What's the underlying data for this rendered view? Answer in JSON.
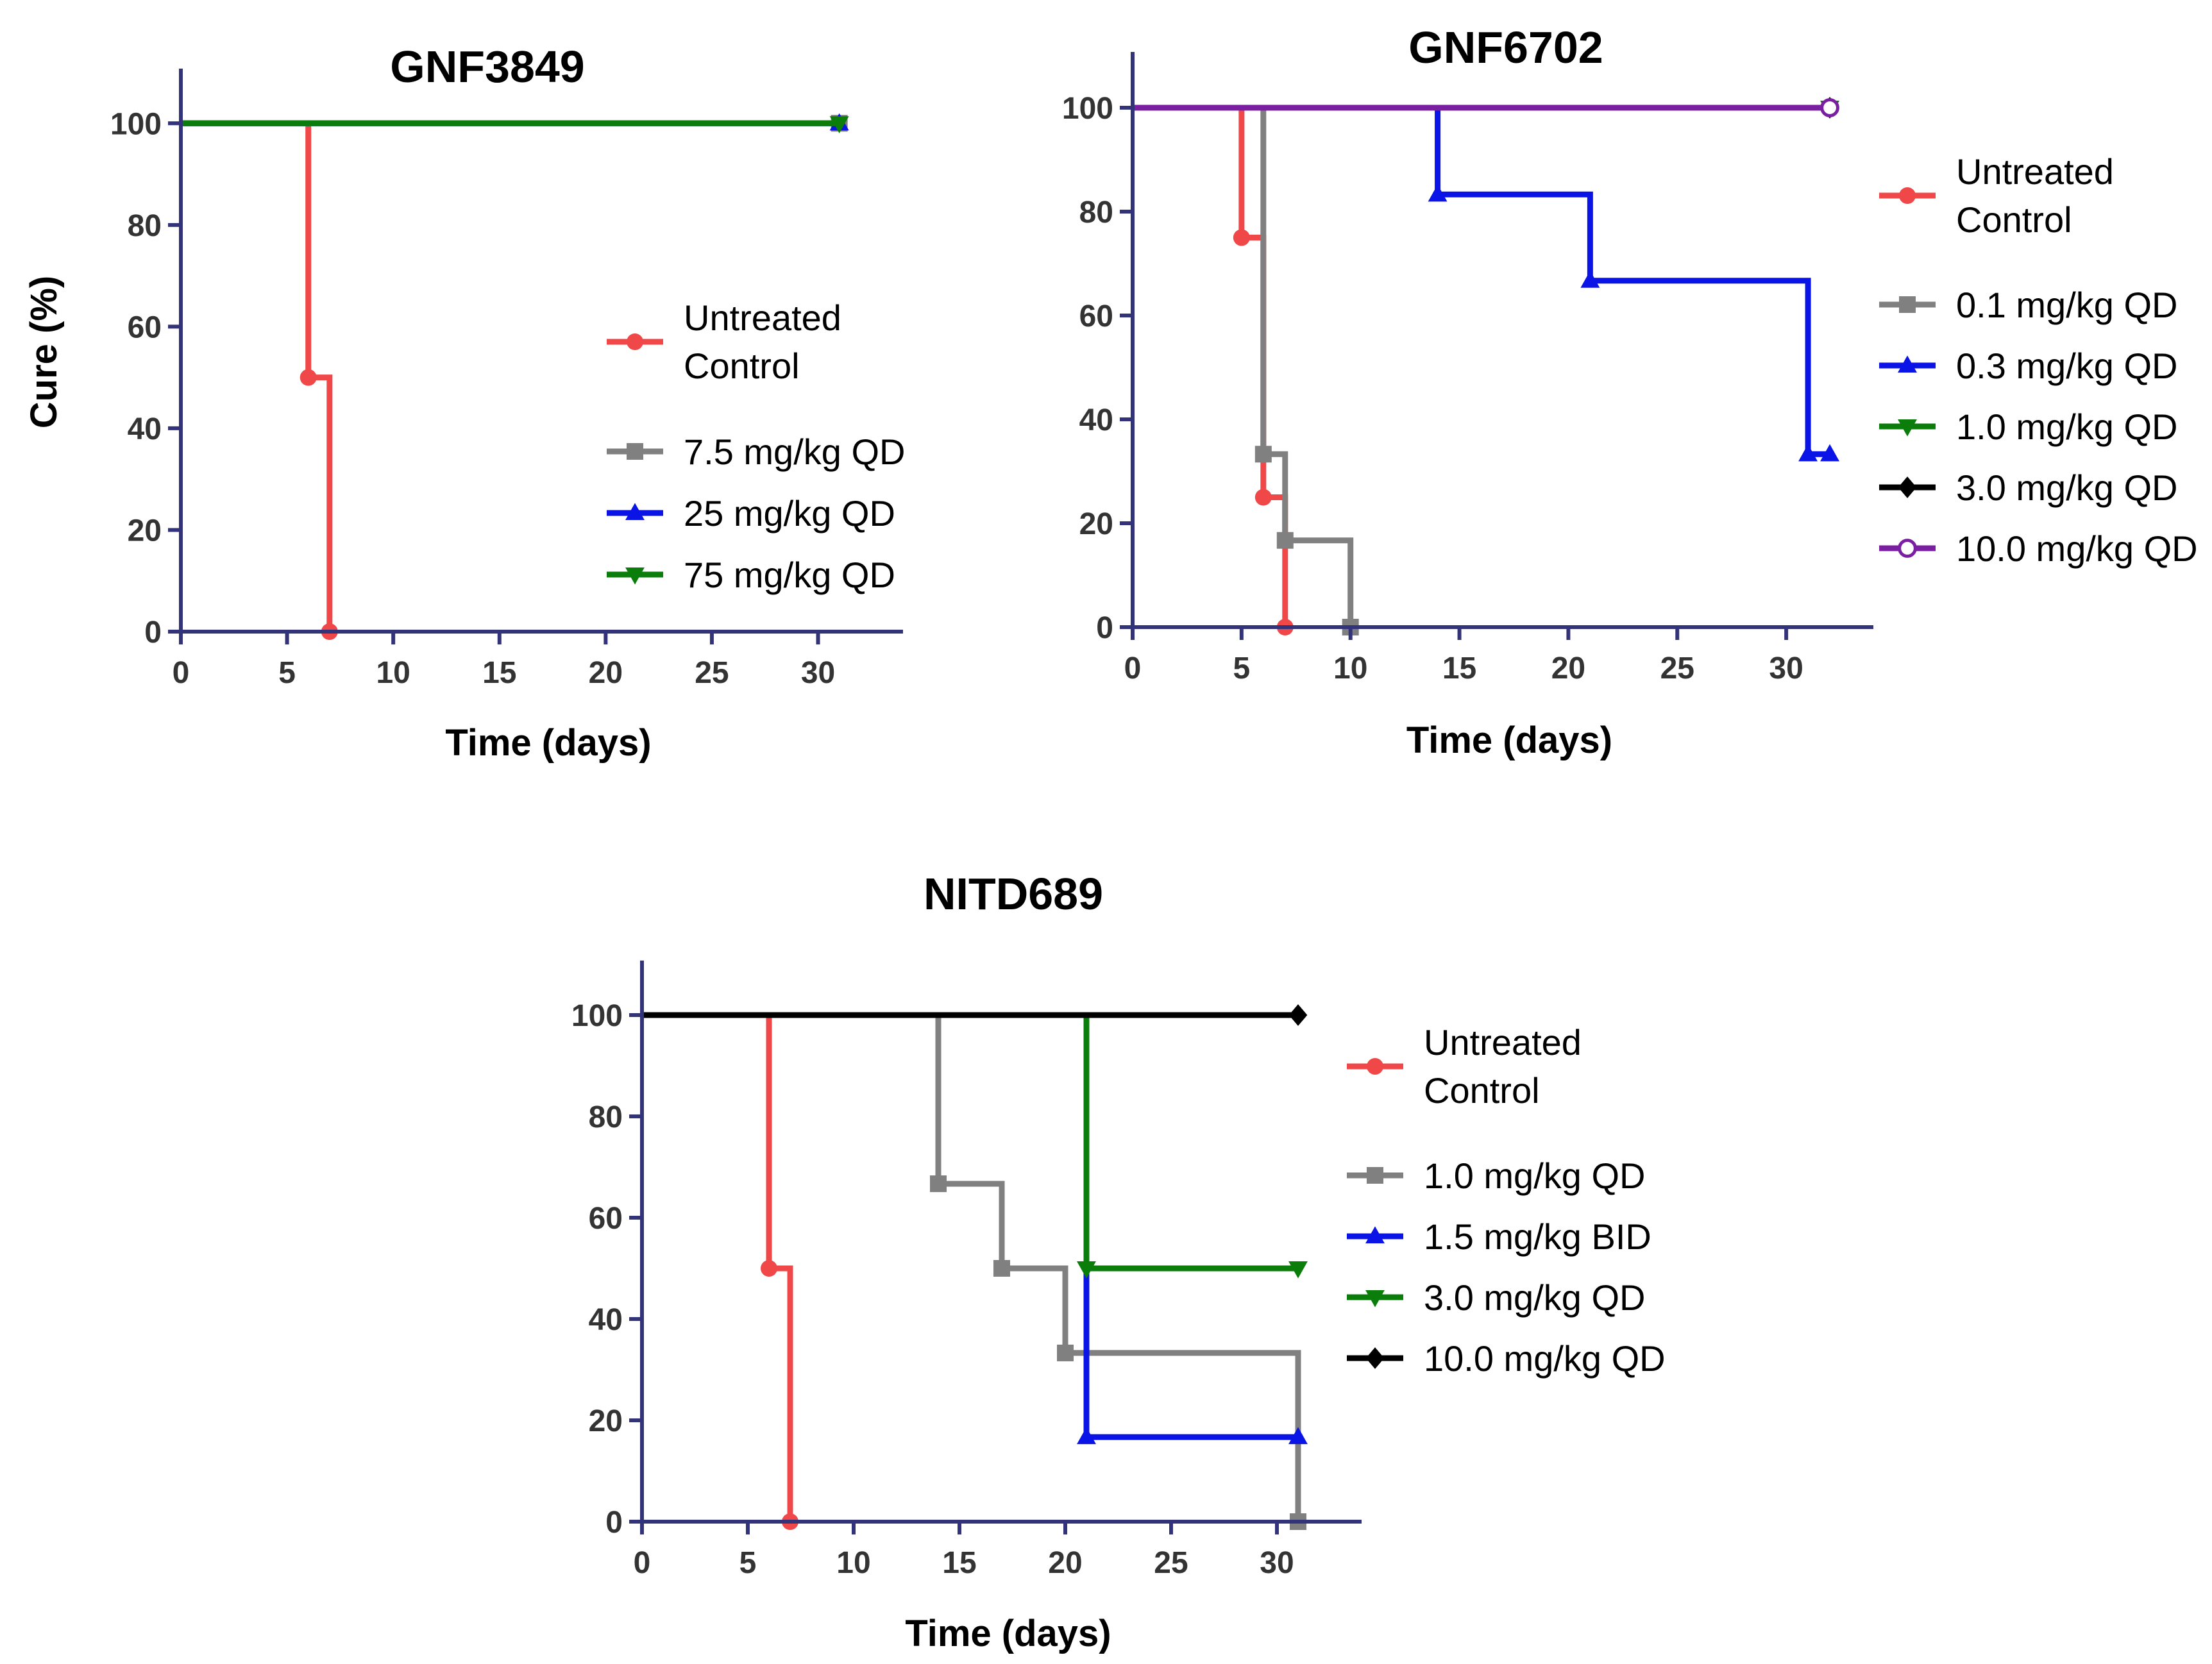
{
  "chart_data": [
    {
      "type": "line",
      "subtype": "kaplan-meier step",
      "title": "GNF3849",
      "xlabel": "Time (days)",
      "ylabel": "Cure (%)",
      "xlim": [
        0,
        34
      ],
      "ylim": [
        0,
        110
      ],
      "xticks": [
        0,
        5,
        10,
        15,
        20,
        25,
        30
      ],
      "yticks": [
        0,
        20,
        40,
        60,
        80,
        100
      ],
      "legend_position": "middle-right",
      "series": [
        {
          "name": "Untreated\nControl",
          "color": "#f04848",
          "marker": "circle",
          "steps": [
            [
              0,
              100
            ],
            [
              6,
              50
            ],
            [
              7,
              0
            ]
          ],
          "markers": [
            [
              6,
              50
            ],
            [
              7,
              0
            ]
          ],
          "end": 7
        },
        {
          "name": "7.5 mg/kg QD",
          "color": "#808080",
          "marker": "square",
          "steps": [
            [
              0,
              100
            ]
          ],
          "markers": [
            [
              31,
              100
            ]
          ],
          "end": 31
        },
        {
          "name": "25 mg/kg QD",
          "color": "#0a14e6",
          "marker": "triangle-up",
          "steps": [
            [
              0,
              100
            ]
          ],
          "markers": [
            [
              31,
              100
            ]
          ],
          "end": 31
        },
        {
          "name": "75 mg/kg QD",
          "color": "#0b7d0b",
          "marker": "triangle-down",
          "steps": [
            [
              0,
              100
            ]
          ],
          "markers": [
            [
              31,
              100
            ]
          ],
          "end": 31
        }
      ]
    },
    {
      "type": "line",
      "subtype": "kaplan-meier step",
      "title": "GNF6702",
      "xlabel": "Time (days)",
      "ylabel": "",
      "xlim": [
        0,
        34
      ],
      "ylim": [
        0,
        110
      ],
      "xticks": [
        0,
        5,
        10,
        15,
        20,
        25,
        30
      ],
      "yticks": [
        0,
        20,
        40,
        60,
        80,
        100
      ],
      "legend_position": "right",
      "series": [
        {
          "name": "Untreated\nControl",
          "color": "#f04848",
          "marker": "circle",
          "steps": [
            [
              0,
              100
            ],
            [
              5,
              75
            ],
            [
              6,
              25
            ],
            [
              7,
              0
            ]
          ],
          "markers": [
            [
              5,
              75
            ],
            [
              6,
              25
            ],
            [
              7,
              0
            ]
          ],
          "end": 7
        },
        {
          "name": "0.1 mg/kg QD",
          "color": "#808080",
          "marker": "square",
          "steps": [
            [
              0,
              100
            ],
            [
              6,
              33.3
            ],
            [
              7,
              16.7
            ],
            [
              10,
              0
            ]
          ],
          "markers": [
            [
              6,
              33.3
            ],
            [
              7,
              16.7
            ],
            [
              10,
              0
            ]
          ],
          "end": 10
        },
        {
          "name": "0.3 mg/kg QD",
          "color": "#0a14e6",
          "marker": "triangle-up",
          "steps": [
            [
              0,
              100
            ],
            [
              14,
              83.3
            ],
            [
              21,
              66.7
            ],
            [
              31,
              33.3
            ]
          ],
          "markers": [
            [
              14,
              83.3
            ],
            [
              21,
              66.7
            ],
            [
              31,
              33.3
            ],
            [
              32,
              33.3
            ]
          ],
          "end": 32
        },
        {
          "name": "1.0 mg/kg QD",
          "color": "#0b7d0b",
          "marker": "triangle-down",
          "steps": [
            [
              0,
              100
            ]
          ],
          "markers": [
            [
              32,
              100
            ]
          ],
          "end": 32
        },
        {
          "name": "3.0 mg/kg QD",
          "color": "#000000",
          "marker": "diamond",
          "steps": [
            [
              0,
              100
            ]
          ],
          "markers": [
            [
              32,
              100
            ]
          ],
          "end": 32
        },
        {
          "name": "10.0 mg/kg QD",
          "color": "#7b1fa2",
          "marker": "circle-open",
          "steps": [
            [
              0,
              100
            ]
          ],
          "markers": [
            [
              32,
              100
            ]
          ],
          "end": 32
        }
      ]
    },
    {
      "type": "line",
      "subtype": "kaplan-meier step",
      "title": "NITD689",
      "xlabel": "Time (days)",
      "ylabel": "",
      "xlim": [
        0,
        34
      ],
      "ylim": [
        0,
        110
      ],
      "xticks": [
        0,
        5,
        10,
        15,
        20,
        25,
        30
      ],
      "yticks": [
        0,
        20,
        40,
        60,
        80,
        100
      ],
      "legend_position": "right",
      "series": [
        {
          "name": "Untreated\nControl",
          "color": "#f04848",
          "marker": "circle",
          "steps": [
            [
              0,
              100
            ],
            [
              6,
              50
            ],
            [
              7,
              0
            ]
          ],
          "markers": [
            [
              6,
              50
            ],
            [
              7,
              0
            ]
          ],
          "end": 7
        },
        {
          "name": "1.0 mg/kg QD",
          "color": "#808080",
          "marker": "square",
          "steps": [
            [
              0,
              100
            ],
            [
              14,
              66.7
            ],
            [
              17,
              50
            ],
            [
              20,
              33.3
            ],
            [
              21,
              33.3
            ],
            [
              31,
              0
            ]
          ],
          "markers": [
            [
              14,
              66.7
            ],
            [
              17,
              50
            ],
            [
              20,
              33.3
            ],
            [
              31,
              0
            ]
          ],
          "end": 31
        },
        {
          "name": "1.5 mg/kg BID",
          "color": "#0a14e6",
          "marker": "triangle-up",
          "steps": [
            [
              0,
              100
            ],
            [
              21,
              16.7
            ]
          ],
          "markers": [
            [
              21,
              16.7
            ],
            [
              31,
              16.7
            ]
          ],
          "end": 31
        },
        {
          "name": "3.0 mg/kg QD",
          "color": "#0b7d0b",
          "marker": "triangle-down",
          "steps": [
            [
              0,
              100
            ],
            [
              21,
              50
            ]
          ],
          "markers": [
            [
              21,
              50
            ],
            [
              31,
              50
            ]
          ],
          "end": 31
        },
        {
          "name": "10.0 mg/kg QD",
          "color": "#000000",
          "marker": "diamond",
          "steps": [
            [
              0,
              100
            ]
          ],
          "markers": [
            [
              31,
              100
            ]
          ],
          "end": 31
        }
      ]
    }
  ],
  "colors": {
    "axis": "#33337a",
    "tick_text": "#333333"
  }
}
